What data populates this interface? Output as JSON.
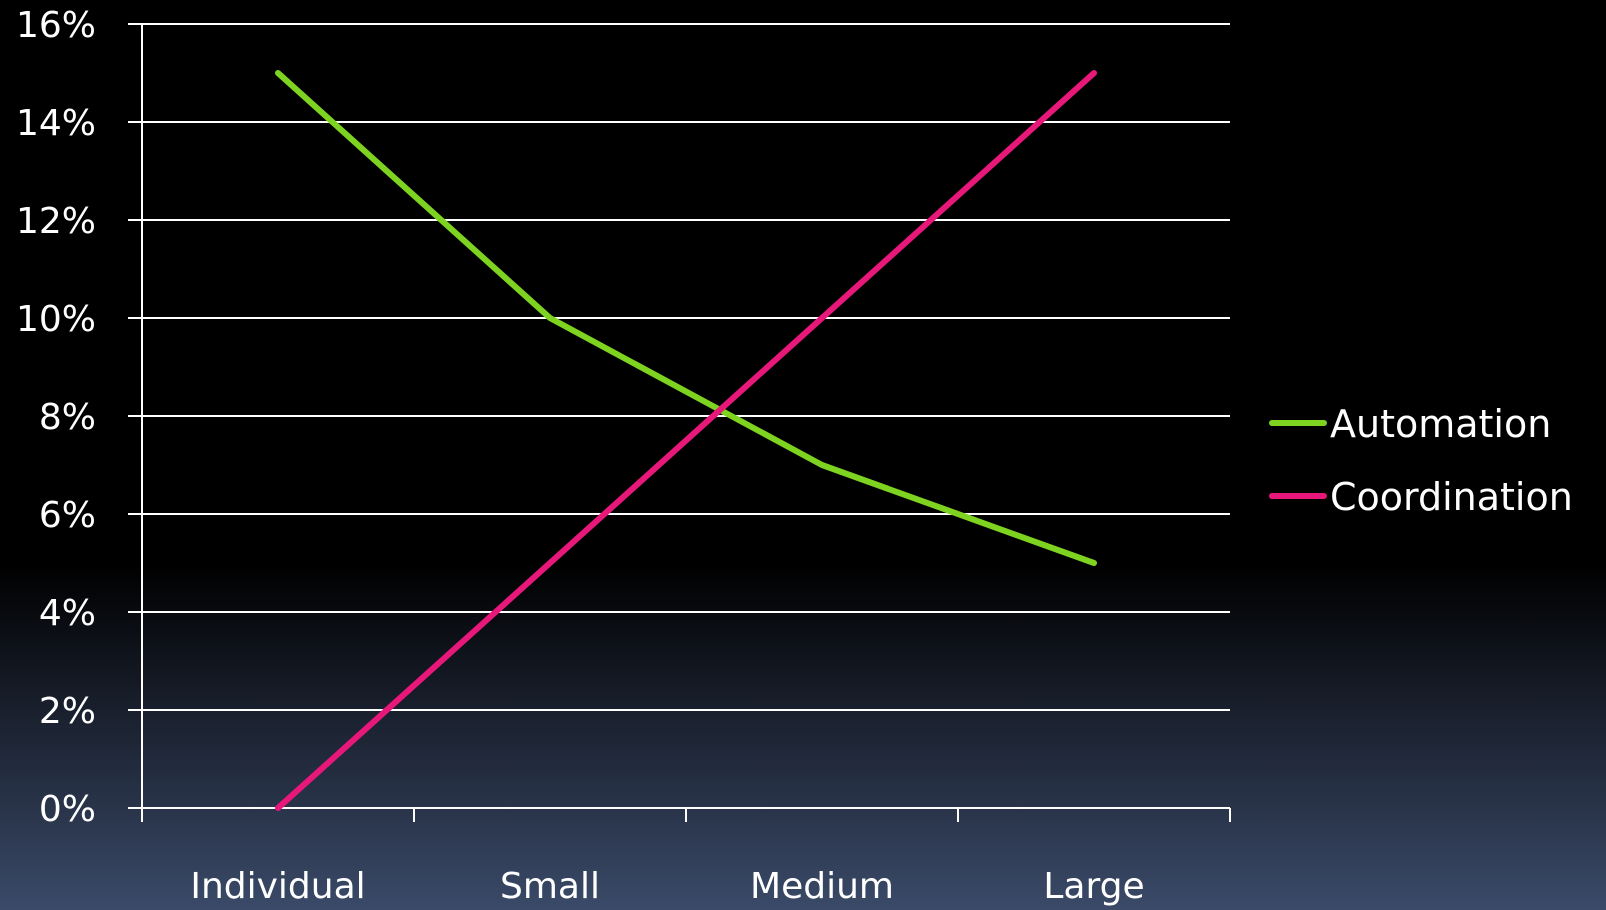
{
  "chart_data": {
    "type": "line",
    "categories": [
      "Individual",
      "Small",
      "Medium",
      "Large"
    ],
    "series": [
      {
        "name": "Automation",
        "values": [
          15,
          10,
          7,
          5
        ],
        "color": "#7ed321"
      },
      {
        "name": "Coordination",
        "values": [
          0,
          5,
          10,
          15
        ],
        "color": "#e8177a"
      }
    ],
    "y_ticks": [
      "0%",
      "2%",
      "4%",
      "6%",
      "8%",
      "10%",
      "12%",
      "14%",
      "16%"
    ],
    "ylim": [
      0,
      16
    ],
    "ystep": 2,
    "grid": true,
    "legend": "right",
    "gridline_color": "#ffffff",
    "axis_color": "#ffffff",
    "text_color": "#ffffff"
  }
}
